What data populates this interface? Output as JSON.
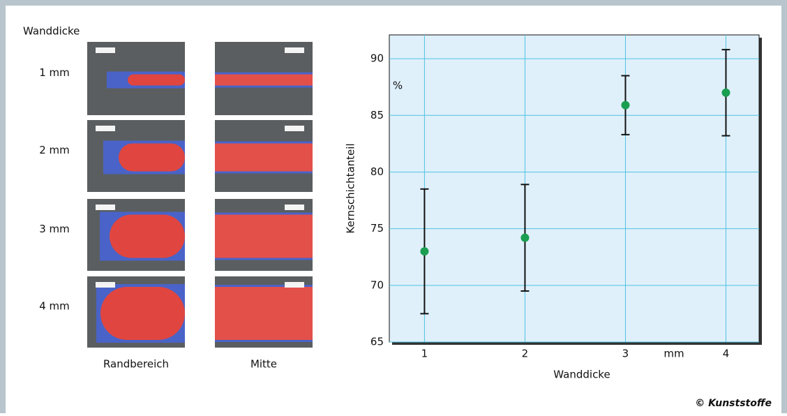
{
  "images": {
    "title": "Wanddicke",
    "rows": [
      "1 mm",
      "2 mm",
      "3 mm",
      "4 mm"
    ],
    "columns": [
      "Randbereich",
      "Mitte"
    ]
  },
  "chart_data": {
    "type": "errorbar",
    "y_label": "Kernschichtanteil",
    "y_unit": "%",
    "x_label": "Wanddicke",
    "x_unit": "mm",
    "x": [
      1,
      2,
      3,
      4
    ],
    "series": [
      {
        "color": "#1a9e50",
        "values": [
          73.0,
          74.2,
          85.9,
          87.0
        ],
        "errors": [
          5.5,
          4.7,
          2.6,
          3.8
        ]
      }
    ],
    "xlim": [
      0.65,
      4.33
    ],
    "xticks": [
      1,
      2,
      3,
      4
    ],
    "ylim": [
      65,
      92.1
    ],
    "yticks": [
      65,
      70,
      75,
      80,
      85,
      90
    ],
    "grid": true
  },
  "copyright": "© Kunststoffe"
}
